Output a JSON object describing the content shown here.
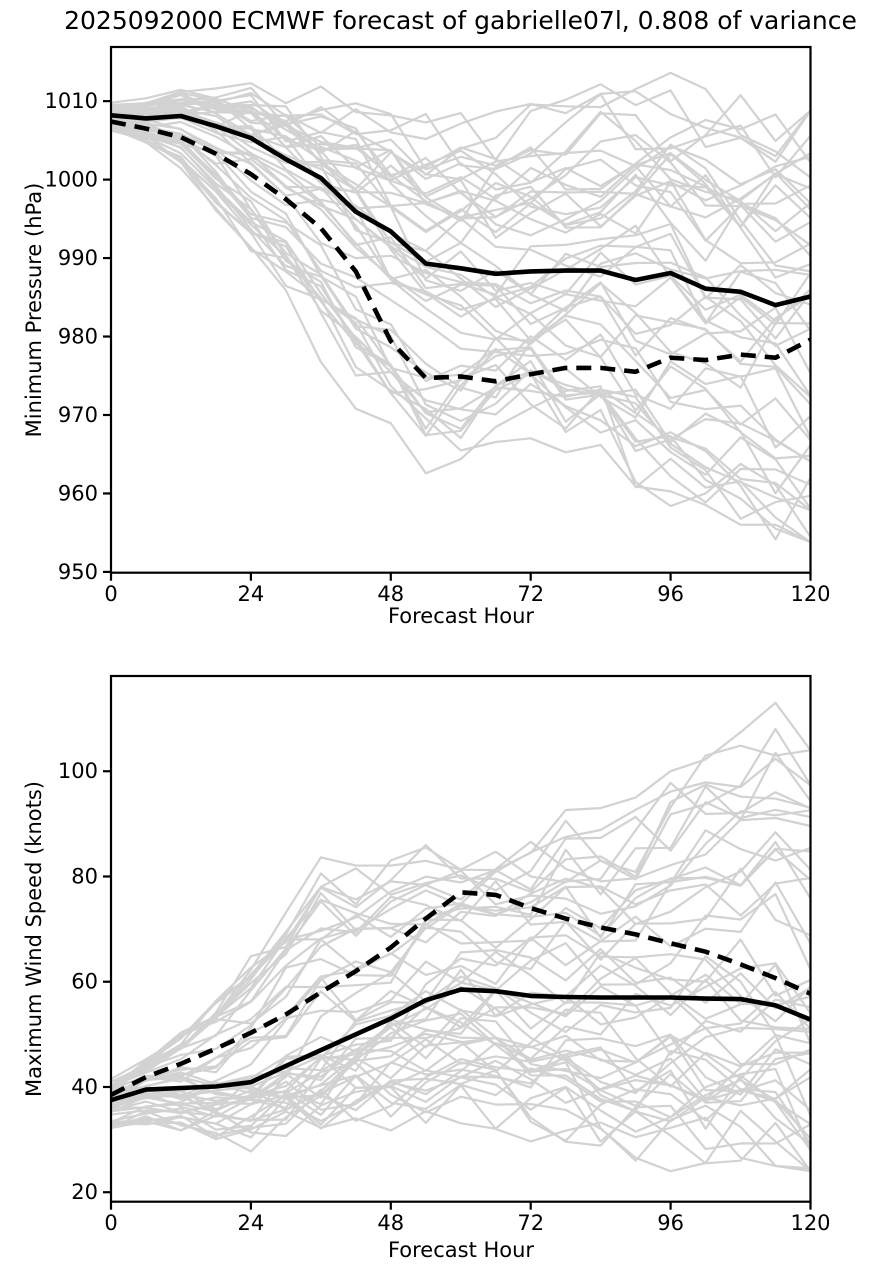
{
  "title": "2025092000 ECMWF forecast of gabrielle07l, 0.808 of variance",
  "colors": {
    "background": "#ffffff",
    "text": "#000000",
    "mean_line": "#000000",
    "dashed_line": "#000000",
    "ensemble_member_line": "#d2d2d2",
    "axis": "#000000"
  },
  "chart_data": [
    {
      "type": "line",
      "id": "minimum-pressure",
      "xlabel": "Forecast Hour",
      "ylabel": "Minimum Pressure (hPa)",
      "xlim": [
        0,
        120
      ],
      "ylim": [
        949.9,
        1016.9
      ],
      "xticks": [
        0,
        24,
        48,
        72,
        96,
        120
      ],
      "yticks": [
        1010,
        1000,
        990,
        980,
        970,
        960,
        950
      ],
      "grid": false,
      "legend": "none",
      "x": [
        0,
        6,
        12,
        18,
        24,
        30,
        36,
        42,
        48,
        54,
        60,
        66,
        72,
        78,
        84,
        90,
        96,
        102,
        108,
        114,
        120
      ],
      "series": [
        {
          "name": "ensemble_mean_solid",
          "style": "solid",
          "color": "#000000",
          "values": [
            1008.2,
            1007.8,
            1008.1,
            1006.8,
            1005.3,
            1002.6,
            1000.2,
            995.9,
            993.4,
            989.3,
            988.7,
            988.0,
            988.3,
            988.4,
            988.4,
            987.2,
            988.1,
            986.1,
            985.7,
            984.0,
            985.1
          ]
        },
        {
          "name": "weighted_mean_dashed",
          "style": "dashed",
          "color": "#000000",
          "values": [
            1007.4,
            1006.5,
            1005.4,
            1003.3,
            1000.7,
            997.5,
            993.8,
            988.3,
            979.4,
            974.7,
            974.9,
            974.3,
            975.2,
            976.0,
            976.0,
            975.5,
            977.3,
            977.0,
            977.7,
            977.3,
            979.6
          ]
        }
      ],
      "ensemble": {
        "count": 50,
        "seed": 20250920,
        "color": "#d2d2d2",
        "envelope_top": [
          1011.2,
          1012.0,
          1012.8,
          1012.6,
          1012.9,
          1013.2,
          1013.4,
          1013.2,
          1013.0,
          1012.6,
          1012.6,
          1013.0,
          1012.6,
          1012.2,
          1013.8,
          1013.4,
          1013.6,
          1012.2,
          1011.6,
          1009.5,
          1008.8
        ],
        "envelope_bottom": [
          1004.5,
          1002.0,
          997.5,
          991.0,
          982.5,
          977.0,
          969.5,
          965.5,
          961.5,
          958.8,
          960.0,
          962.5,
          963.5,
          963.0,
          962.0,
          958.0,
          956.0,
          957.0,
          956.0,
          953.5,
          953.8
        ]
      }
    },
    {
      "type": "line",
      "id": "maximum-wind-speed",
      "xlabel": "Forecast Hour",
      "ylabel": "Maximum Wind Speed (knots)",
      "xlim": [
        0,
        120
      ],
      "ylim": [
        18.2,
        118.1
      ],
      "xticks": [
        0,
        24,
        48,
        72,
        96,
        120
      ],
      "yticks": [
        100,
        80,
        60,
        40,
        20
      ],
      "grid": false,
      "legend": "none",
      "x": [
        0,
        6,
        12,
        18,
        24,
        30,
        36,
        42,
        48,
        54,
        60,
        66,
        72,
        78,
        84,
        90,
        96,
        102,
        108,
        114,
        120
      ],
      "series": [
        {
          "name": "ensemble_mean_solid",
          "style": "solid",
          "color": "#000000",
          "values": [
            37.5,
            39.5,
            39.8,
            40.1,
            40.9,
            44.0,
            47.0,
            50.0,
            53.0,
            56.5,
            58.5,
            58.2,
            57.3,
            57.1,
            57.0,
            57.0,
            57.0,
            56.8,
            56.7,
            55.5,
            52.8
          ]
        },
        {
          "name": "weighted_mean_dashed",
          "style": "dashed",
          "color": "#000000",
          "values": [
            38.5,
            41.9,
            44.4,
            47.3,
            50.3,
            53.8,
            58.0,
            62.0,
            66.5,
            72.0,
            77.0,
            76.5,
            74.0,
            72.0,
            70.3,
            69.0,
            67.3,
            65.7,
            63.3,
            60.7,
            57.7
          ]
        }
      ],
      "ensemble": {
        "count": 50,
        "seed": 92000,
        "color": "#d2d2d2",
        "envelope_top": [
          46,
          51,
          58,
          68,
          80,
          90,
          103,
          96,
          97,
          96,
          95,
          95,
          94,
          96,
          93,
          95,
          100,
          103,
          108,
          113,
          104
        ],
        "envelope_bottom": [
          28,
          28.5,
          27,
          26.5,
          26,
          26.5,
          27,
          27.5,
          27.5,
          29,
          30,
          29,
          28,
          28.5,
          27,
          26,
          24,
          25.5,
          26,
          25,
          24
        ]
      }
    }
  ]
}
